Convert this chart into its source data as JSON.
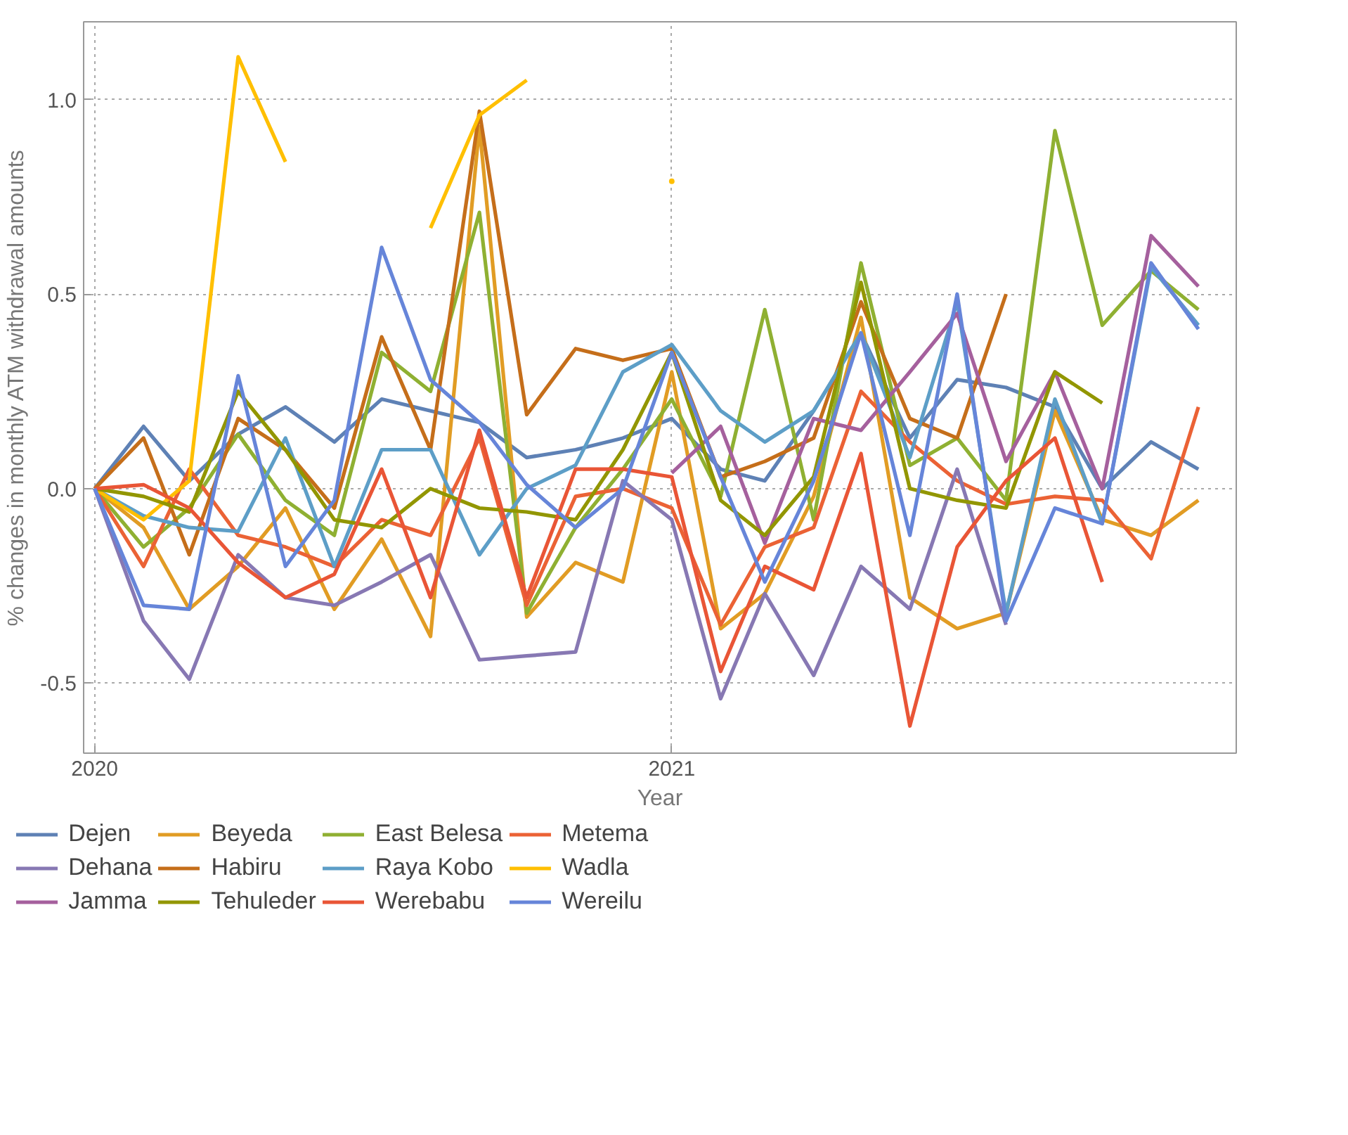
{
  "chart_data": {
    "type": "line",
    "xlabel": "Year",
    "ylabel": "% changes in monthly ATM withdrawal amounts",
    "x": [
      "2020-01",
      "2020-02",
      "2020-03",
      "2020-04",
      "2020-05",
      "2020-06",
      "2020-07",
      "2020-08",
      "2020-09",
      "2020-10",
      "2020-11",
      "2020-12",
      "2021-01",
      "2021-02",
      "2021-03",
      "2021-04",
      "2021-05",
      "2021-06",
      "2021-07",
      "2021-08",
      "2021-09",
      "2021-10",
      "2021-11",
      "2021-12"
    ],
    "xlim": [
      "2019-12-25",
      "2021-12-25"
    ],
    "xticks": [
      {
        "value": "2020-01",
        "label": "2020"
      },
      {
        "value": "2021-01",
        "label": "2021"
      }
    ],
    "ylim": [
      -0.68,
      1.2
    ],
    "yticks": [
      {
        "value": -0.5,
        "label": "-0.5"
      },
      {
        "value": 0,
        "label": "0.0"
      },
      {
        "value": 0.5,
        "label": "0.5"
      },
      {
        "value": 1,
        "label": "1.0"
      }
    ],
    "grid": true,
    "legend": "bottom",
    "line_style": "solid",
    "marker": "none",
    "series": [
      {
        "name": "Dejen",
        "color": "#5e81b5",
        "values": [
          0,
          0.16,
          0.02,
          0.14,
          0.21,
          0.12,
          0.23,
          0.2,
          0.17,
          0.08,
          0.1,
          0.13,
          0.18,
          0.05,
          0.02,
          0.2,
          0.4,
          0.13,
          0.28,
          0.26,
          0.21,
          0.0,
          0.12,
          0.05
        ]
      },
      {
        "name": "Beyeda",
        "color": "#e19c24",
        "values": [
          0,
          -0.1,
          -0.31,
          -0.2,
          -0.05,
          -0.31,
          -0.13,
          -0.38,
          0.93,
          -0.33,
          -0.19,
          -0.24,
          0.3,
          -0.36,
          -0.27,
          -0.02,
          0.44,
          -0.28,
          -0.36,
          -0.32,
          0.2,
          -0.08,
          -0.12,
          -0.03
        ]
      },
      {
        "name": "East Belesa",
        "color": "#8fb032",
        "values": [
          0,
          -0.15,
          -0.05,
          0.14,
          -0.03,
          -0.12,
          0.35,
          0.25,
          0.71,
          -0.32,
          -0.1,
          0.05,
          0.23,
          -0.02,
          0.46,
          -0.08,
          0.58,
          0.06,
          0.13,
          -0.03,
          0.92,
          0.42,
          0.56,
          0.46
        ]
      },
      {
        "name": "Metema",
        "color": "#eb6235",
        "values": [
          0,
          -0.2,
          0.05,
          -0.12,
          -0.15,
          -0.2,
          -0.08,
          -0.12,
          0.13,
          -0.3,
          -0.02,
          0.0,
          -0.05,
          -0.35,
          -0.15,
          -0.1,
          0.25,
          0.12,
          0.02,
          -0.04,
          -0.02,
          -0.03,
          -0.18,
          0.21
        ]
      },
      {
        "name": "Dehana",
        "color": "#8778b3",
        "values": [
          0,
          -0.34,
          -0.49,
          -0.17,
          -0.28,
          -0.3,
          -0.24,
          -0.17,
          -0.44,
          -0.43,
          -0.42,
          0.02,
          -0.08,
          -0.54,
          -0.27,
          -0.48,
          -0.2,
          -0.31,
          0.05,
          -0.35,
          null,
          null,
          null,
          null
        ]
      },
      {
        "name": "Habiru",
        "color": "#c56e1a",
        "values": [
          0,
          0.13,
          -0.17,
          0.18,
          0.1,
          -0.05,
          0.39,
          0.1,
          0.97,
          0.19,
          0.36,
          0.33,
          0.36,
          0.03,
          0.07,
          0.13,
          0.48,
          0.18,
          0.13,
          0.5,
          null,
          null,
          null,
          null
        ]
      },
      {
        "name": "Raya Kobo",
        "color": "#5d9ec7",
        "values": [
          0,
          -0.07,
          -0.1,
          -0.11,
          0.13,
          -0.2,
          0.1,
          0.1,
          -0.17,
          0.0,
          0.06,
          0.3,
          0.37,
          0.2,
          0.12,
          0.2,
          0.4,
          0.08,
          0.48,
          -0.32,
          0.23,
          -0.09,
          0.57,
          0.42
        ]
      },
      {
        "name": "Wadla",
        "color": "#ffbf00",
        "values": [
          0,
          -0.08,
          0.02,
          1.11,
          0.84,
          null,
          null,
          0.67,
          0.96,
          1.05,
          null,
          null,
          0.79,
          null,
          null,
          null,
          null,
          null,
          null,
          null,
          null,
          null,
          null,
          null
        ]
      },
      {
        "name": "Jamma",
        "color": "#a5609d",
        "values": [
          null,
          null,
          null,
          null,
          null,
          null,
          null,
          null,
          null,
          null,
          null,
          null,
          0.04,
          0.16,
          -0.14,
          0.18,
          0.15,
          0.3,
          0.45,
          0.07,
          0.3,
          0.0,
          0.65,
          0.52
        ]
      },
      {
        "name": "Tehuleder",
        "color": "#929600",
        "values": [
          0,
          -0.02,
          -0.06,
          0.25,
          0.1,
          -0.08,
          -0.1,
          0.0,
          -0.05,
          -0.06,
          -0.08,
          0.1,
          0.35,
          -0.03,
          -0.12,
          0.03,
          0.53,
          0.0,
          -0.03,
          -0.05,
          0.3,
          0.22,
          null,
          null
        ]
      },
      {
        "name": "Werebabu",
        "color": "#e95536",
        "values": [
          0,
          0.01,
          -0.05,
          -0.19,
          -0.28,
          -0.22,
          0.05,
          -0.28,
          0.15,
          -0.28,
          0.05,
          0.05,
          0.03,
          -0.47,
          -0.2,
          -0.26,
          0.09,
          -0.61,
          -0.15,
          0.02,
          0.13,
          -0.24,
          null,
          null
        ]
      },
      {
        "name": "Wereilu",
        "color": "#6685d9",
        "values": [
          0,
          -0.3,
          -0.31,
          0.29,
          -0.2,
          -0.03,
          0.62,
          0.28,
          0.17,
          0.01,
          -0.1,
          0.0,
          0.35,
          0.03,
          -0.24,
          0.02,
          0.4,
          -0.12,
          0.5,
          -0.34,
          -0.05,
          -0.09,
          0.58,
          0.41
        ]
      }
    ]
  }
}
